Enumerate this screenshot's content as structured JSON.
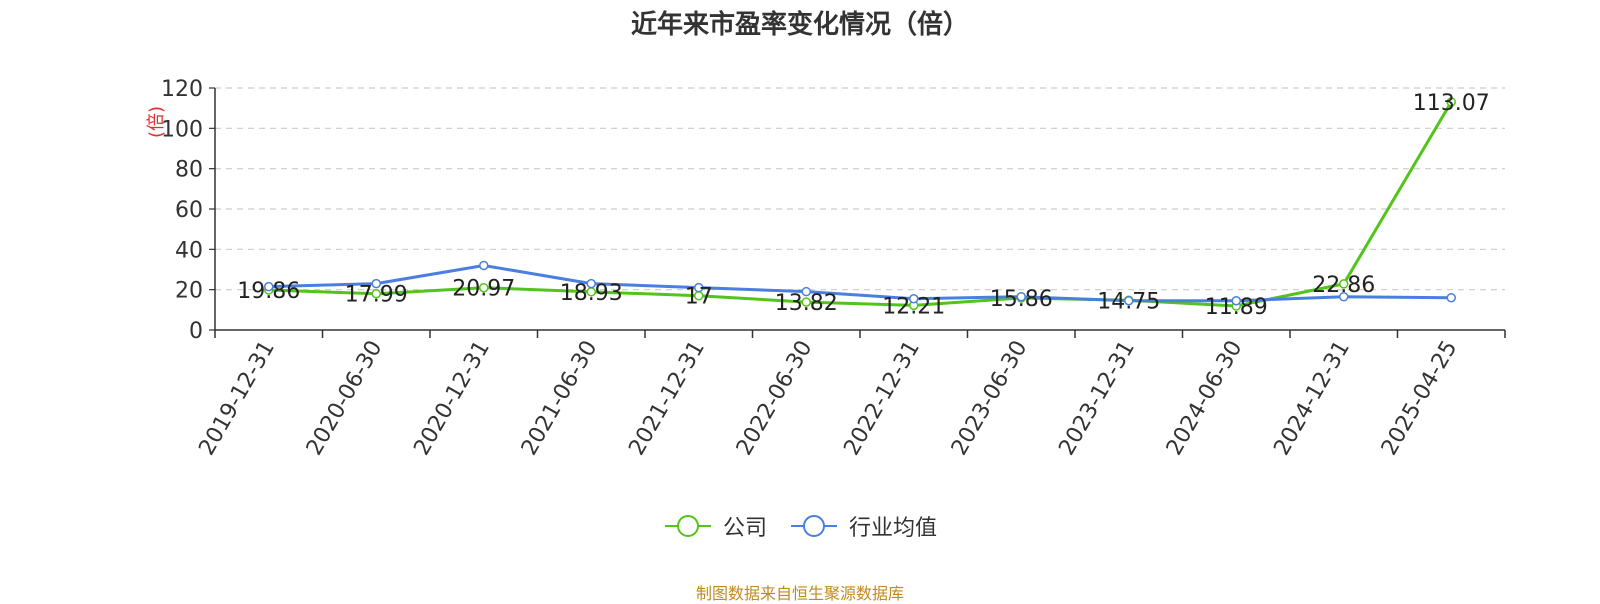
{
  "chart_data": {
    "type": "line",
    "title": "近年来市盈率变化情况（倍）",
    "ylabel": "(倍)",
    "ylim": [
      0,
      120
    ],
    "yticks": [
      0,
      20,
      40,
      60,
      80,
      100,
      120
    ],
    "grid": true,
    "legend_position": "bottom",
    "categories": [
      "2019-12-31",
      "2020-06-30",
      "2020-12-31",
      "2021-06-30",
      "2021-12-31",
      "2022-06-30",
      "2022-12-31",
      "2023-06-30",
      "2023-12-31",
      "2024-06-30",
      "2024-12-31",
      "2025-04-25"
    ],
    "series": [
      {
        "name": "公司",
        "color": "#52c41a",
        "values": [
          19.86,
          17.99,
          20.97,
          18.93,
          17,
          13.82,
          12.21,
          15.86,
          14.75,
          11.89,
          22.86,
          113.07
        ],
        "show_labels": true
      },
      {
        "name": "行业均值",
        "color": "#4a7fe0",
        "values": [
          21.5,
          23,
          32,
          23,
          21,
          19,
          15.5,
          16.5,
          14.5,
          14.5,
          16.5,
          16
        ],
        "show_labels": false
      }
    ],
    "source": "制图数据来自恒生聚源数据库"
  }
}
